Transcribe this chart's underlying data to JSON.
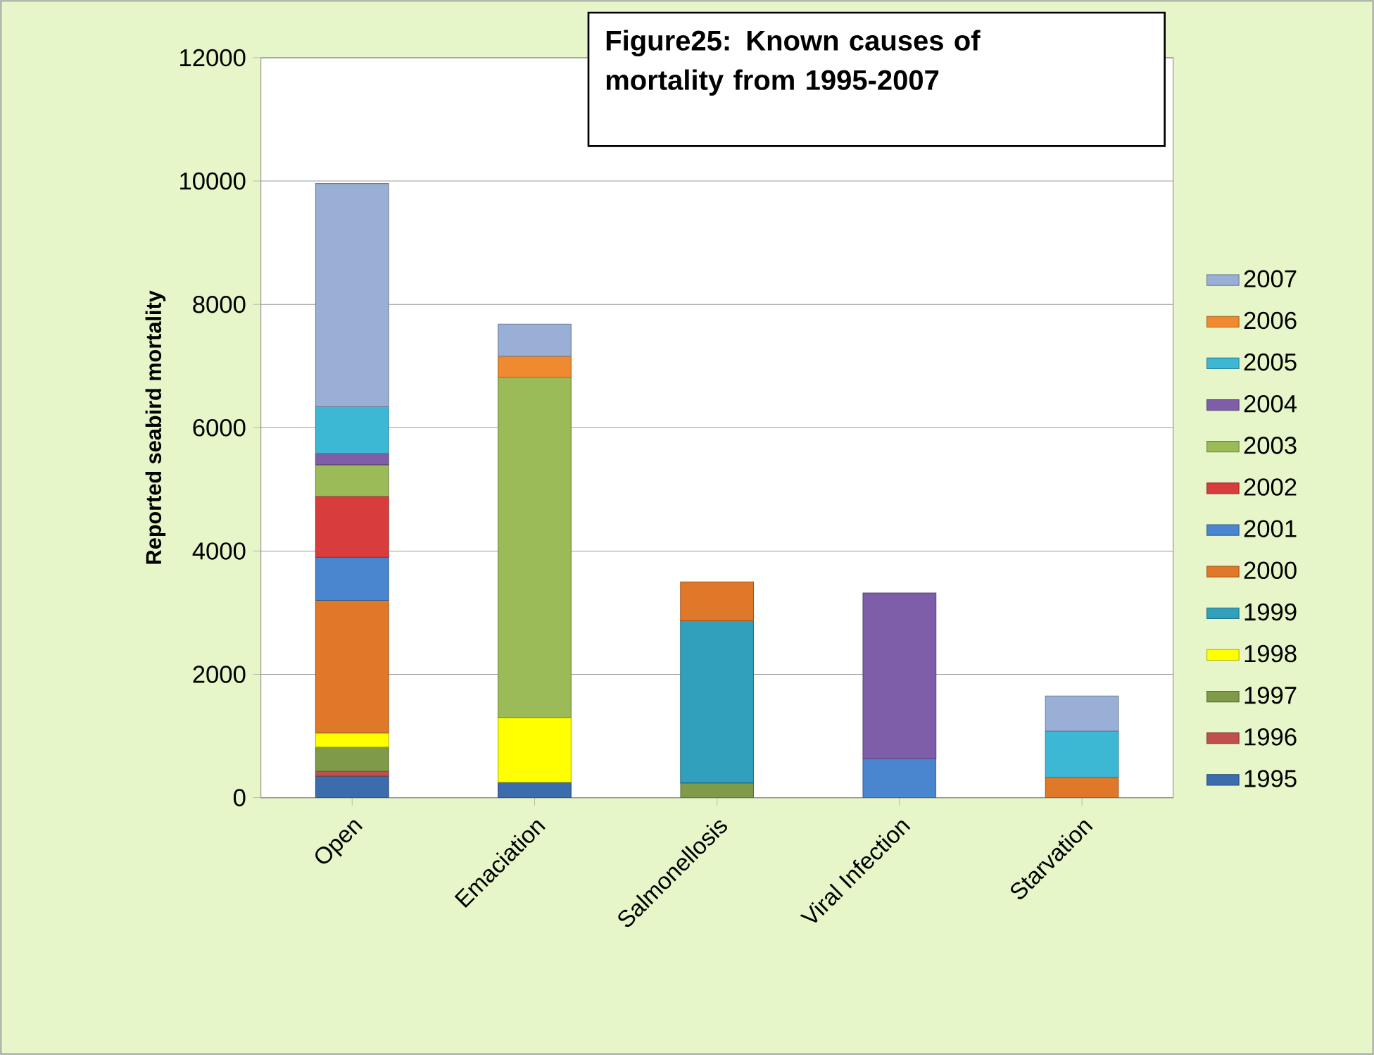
{
  "chart_data": {
    "type": "bar",
    "stacked": true,
    "title": "Figure25: Known causes of mortality from 1995-2007",
    "ylabel": "Reported seabird mortality",
    "categories": [
      "Open",
      "Emaciation",
      "Salmonellosis",
      "Viral Infection",
      "Starvation"
    ],
    "ylim": [
      0,
      12000
    ],
    "yticks": [
      0,
      2000,
      4000,
      6000,
      8000,
      10000,
      12000
    ],
    "grid": "y",
    "legend": "right",
    "series": [
      {
        "name": "1995",
        "color": "#3b6cae",
        "values": [
          350,
          250,
          null,
          null,
          null
        ]
      },
      {
        "name": "1996",
        "color": "#c0504d",
        "values": [
          80,
          null,
          null,
          null,
          null
        ]
      },
      {
        "name": "1997",
        "color": "#7f9a48",
        "values": [
          390,
          null,
          240,
          null,
          null
        ]
      },
      {
        "name": "1998",
        "color": "#ffff00",
        "values": [
          230,
          1050,
          null,
          null,
          null
        ]
      },
      {
        "name": "1999",
        "color": "#31a0bd",
        "values": [
          null,
          null,
          2630,
          null,
          null
        ]
      },
      {
        "name": "2000",
        "color": "#e0782a",
        "values": [
          2150,
          null,
          630,
          null,
          330
        ]
      },
      {
        "name": "2001",
        "color": "#4a86d0",
        "values": [
          700,
          null,
          null,
          630,
          null
        ]
      },
      {
        "name": "2002",
        "color": "#d83c3c",
        "values": [
          990,
          null,
          null,
          null,
          null
        ]
      },
      {
        "name": "2003",
        "color": "#9bbb59",
        "values": [
          510,
          5520,
          null,
          null,
          null
        ]
      },
      {
        "name": "2004",
        "color": "#7e5ea8",
        "values": [
          180,
          null,
          null,
          2690,
          null
        ]
      },
      {
        "name": "2005",
        "color": "#3cb8d4",
        "values": [
          760,
          null,
          null,
          null,
          750
        ]
      },
      {
        "name": "2006",
        "color": "#f08a30",
        "values": [
          null,
          340,
          null,
          null,
          null
        ]
      },
      {
        "name": "2007",
        "color": "#9aafd6",
        "values": [
          3620,
          520,
          null,
          null,
          570
        ]
      }
    ]
  }
}
